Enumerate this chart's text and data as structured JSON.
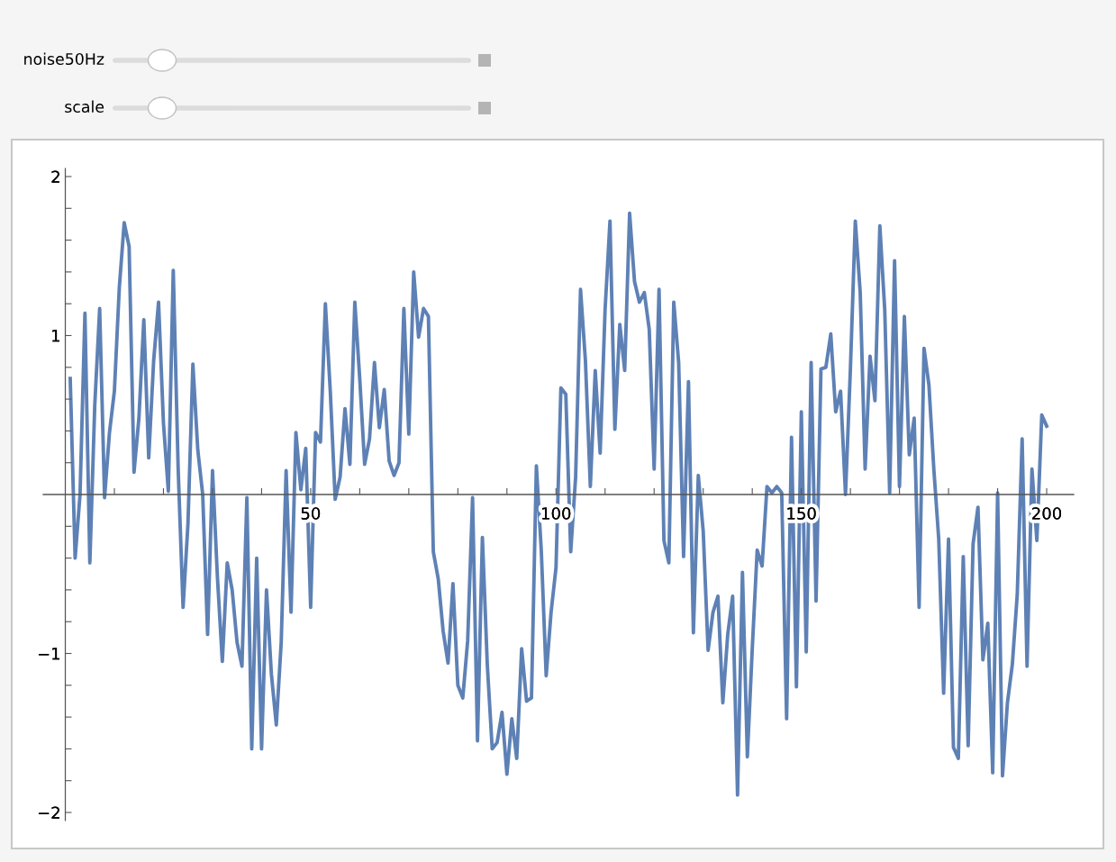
{
  "chart_data": {
    "type": "line",
    "annotations": [
      "noise50Hz",
      "scale"
    ],
    "x": [
      1,
      2,
      3,
      4,
      5,
      6,
      7,
      8,
      9,
      10,
      11,
      12,
      13,
      14,
      15,
      16,
      17,
      18,
      19,
      20,
      21,
      22,
      23,
      24,
      25,
      26,
      27,
      28,
      29,
      30,
      31,
      32,
      33,
      34,
      35,
      36,
      37,
      38,
      39,
      40,
      41,
      42,
      43,
      44,
      45,
      46,
      47,
      48,
      49,
      50,
      51,
      52,
      53,
      54,
      55,
      56,
      57,
      58,
      59,
      60,
      61,
      62,
      63,
      64,
      65,
      66,
      67,
      68,
      69,
      70,
      71,
      72,
      73,
      74,
      75,
      76,
      77,
      78,
      79,
      80,
      81,
      82,
      83,
      84,
      85,
      86,
      87,
      88,
      89,
      90,
      91,
      92,
      93,
      94,
      95,
      96,
      97,
      98,
      99,
      100,
      101,
      102,
      103,
      104,
      105,
      106,
      107,
      108,
      109,
      110,
      111,
      112,
      113,
      114,
      115,
      116,
      117,
      118,
      119,
      120,
      121,
      122,
      123,
      124,
      125,
      126,
      127,
      128,
      129,
      130,
      131,
      132,
      133,
      134,
      135,
      136,
      137,
      138,
      139,
      140,
      141,
      142,
      143,
      144,
      145,
      146,
      147,
      148,
      149,
      150,
      151,
      152,
      153,
      154,
      155,
      156,
      157,
      158,
      159,
      160,
      161,
      162,
      163,
      164,
      165,
      166,
      167,
      168,
      169,
      170,
      171,
      172,
      173,
      174,
      175,
      176,
      177,
      178,
      179,
      180,
      181,
      182,
      183,
      184,
      185,
      186,
      187,
      188,
      189,
      190,
      191,
      192,
      193,
      194,
      195,
      196,
      197,
      198,
      199,
      200
    ],
    "series": [
      {
        "color": "#5e81b5",
        "values": [
          0.73,
          -0.4,
          0,
          1.14,
          -0.43,
          0.56,
          1.17,
          -0.02,
          0.39,
          0.65,
          1.3,
          1.71,
          1.56,
          0.14,
          0.48,
          1.1,
          0.23,
          0.84,
          1.21,
          0.45,
          0.02,
          1.41,
          0.16,
          -0.71,
          -0.18,
          0.82,
          0.28,
          0,
          -0.88,
          0.15,
          -0.52,
          -1.05,
          -0.43,
          -0.6,
          -0.93,
          -1.08,
          -0.02,
          -1.6,
          -0.4,
          -1.6,
          -0.6,
          -1.13,
          -1.45,
          -0.93,
          0.15,
          -0.74,
          0.39,
          0.03,
          0.29,
          -0.71,
          0.39,
          0.33,
          1.2,
          0.65,
          -0.03,
          0.11,
          0.54,
          0.19,
          1.21,
          0.73,
          0.19,
          0.35,
          0.83,
          0.42,
          0.66,
          0.21,
          0.12,
          0.2,
          1.17,
          0.38,
          1.4,
          0.99,
          1.17,
          1.12,
          -0.36,
          -0.53,
          -0.86,
          -1.06,
          -0.56,
          -1.2,
          -1.28,
          -0.92,
          -0.02,
          -1.55,
          -0.27,
          -1.07,
          -1.6,
          -1.56,
          -1.37,
          -1.76,
          -1.41,
          -1.66,
          -0.97,
          -1.3,
          -1.28,
          0.18,
          -0.35,
          -1.14,
          -0.74,
          -0.46,
          0.67,
          0.63,
          -0.36,
          0.11,
          1.29,
          0.84,
          0.05,
          0.78,
          0.26,
          1.16,
          1.72,
          0.41,
          1.07,
          0.78,
          1.77,
          1.34,
          1.21,
          1.27,
          1.04,
          0.16,
          1.29,
          -0.29,
          -0.43,
          1.21,
          0.83,
          -0.39,
          0.71,
          -0.87,
          0.12,
          -0.23,
          -0.98,
          -0.74,
          -0.64,
          -1.31,
          -0.88,
          -0.64,
          -1.89,
          -0.49,
          -1.65,
          -0.97,
          -0.35,
          -0.45,
          0.05,
          0.01,
          0.05,
          0.01,
          -1.41,
          0.36,
          -1.21,
          0.52,
          -0.99,
          0.83,
          -0.67,
          0.79,
          0.8,
          1.01,
          0.52,
          0.65,
          0,
          0.79,
          1.72,
          1.27,
          0.16,
          0.87,
          0.59,
          1.69,
          1.16,
          0.01,
          1.47,
          0.05,
          1.12,
          0.25,
          0.48,
          -0.71,
          0.92,
          0.69,
          0.16,
          -0.28,
          -1.25,
          -0.28,
          -1.59,
          -1.66,
          -0.39,
          -1.58,
          -0.31,
          -0.08,
          -1.04,
          -0.81,
          -1.75,
          0.01,
          -1.77,
          -1.31,
          -1.07,
          -0.63,
          0.35,
          -1.08,
          0.16,
          -0.29,
          0.5,
          0.43
        ]
      }
    ],
    "xlim": [
      -4.5,
      205.5
    ],
    "ylim": [
      -2.05,
      2.05
    ],
    "xticks": [
      {
        "value": 10,
        "label": null
      },
      {
        "value": 20,
        "label": null
      },
      {
        "value": 30,
        "label": null
      },
      {
        "value": 40,
        "label": null
      },
      50,
      {
        "value": 60,
        "label": null
      },
      {
        "value": 70,
        "label": null
      },
      {
        "value": 80,
        "label": null
      },
      {
        "value": 90,
        "label": null
      },
      100,
      {
        "value": 110,
        "label": null
      },
      {
        "value": 120,
        "label": null
      },
      {
        "value": 130,
        "label": null
      },
      {
        "value": 140,
        "label": null
      },
      150,
      {
        "value": 160,
        "label": null
      },
      {
        "value": 170,
        "label": null
      },
      {
        "value": 180,
        "label": null
      },
      {
        "value": 190,
        "label": null
      },
      200
    ],
    "yticks": [
      {
        "value": -2,
        "label": "−2"
      },
      {
        "value": -1.8,
        "label": null
      },
      {
        "value": -1.6,
        "label": null
      },
      {
        "value": -1.4,
        "label": null
      },
      {
        "value": -1.2,
        "label": null
      },
      {
        "value": -1,
        "label": "−1"
      },
      {
        "value": -0.8,
        "label": null
      },
      {
        "value": -0.6,
        "label": null
      },
      {
        "value": -0.4,
        "label": null
      },
      {
        "value": -0.2,
        "label": null
      },
      {
        "value": 0.2,
        "label": null
      },
      {
        "value": 0.4,
        "label": null
      },
      {
        "value": 0.6,
        "label": null
      },
      {
        "value": 0.8,
        "label": null
      },
      1,
      {
        "value": 1.2,
        "label": null
      },
      {
        "value": 1.4,
        "label": null
      },
      {
        "value": 1.6,
        "label": null
      },
      {
        "value": 1.8,
        "label": null
      },
      2
    ]
  }
}
